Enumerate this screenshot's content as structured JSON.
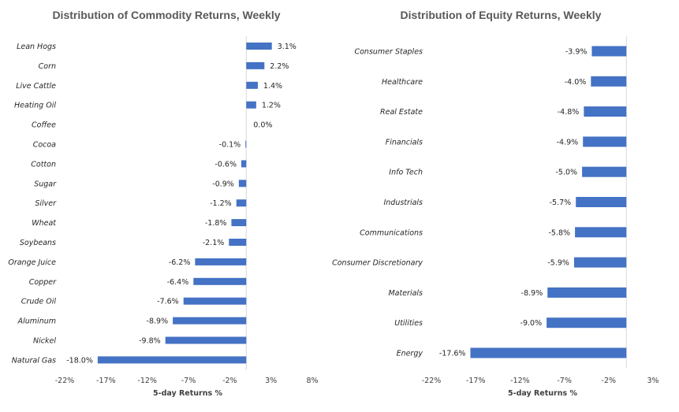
{
  "chart_data": [
    {
      "type": "bar",
      "orientation": "horizontal",
      "title": "Distribution of Commodity Returns, Weekly",
      "xlabel": "5-day Returns %",
      "ylabel": "",
      "xlim": [
        -22,
        8
      ],
      "xticks": [
        -22,
        -17,
        -12,
        -7,
        -2,
        3,
        8
      ],
      "xtick_labels": [
        "-22%",
        "-17%",
        "-12%",
        "-7%",
        "-2%",
        "3%",
        "8%"
      ],
      "grid": false,
      "bar_color": "#4472C4",
      "categories": [
        "Lean Hogs",
        "Corn",
        "Live Cattle",
        "Heating Oil",
        "Coffee",
        "Cocoa",
        "Cotton",
        "Sugar",
        "Silver",
        "Wheat",
        "Soybeans",
        "Orange Juice",
        "Copper",
        "Crude Oil",
        "Aluminum",
        "Nickel",
        "Natural Gas"
      ],
      "values": [
        3.1,
        2.2,
        1.4,
        1.2,
        0.0,
        -0.1,
        -0.6,
        -0.9,
        -1.2,
        -1.8,
        -2.1,
        -6.2,
        -6.4,
        -7.6,
        -8.9,
        -9.8,
        -18.0
      ],
      "value_labels": [
        "3.1%",
        "2.2%",
        "1.4%",
        "1.2%",
        "0.0%",
        "-0.1%",
        "-0.6%",
        "-0.9%",
        "-1.2%",
        "-1.8%",
        "-2.1%",
        "-6.2%",
        "-6.4%",
        "-7.6%",
        "-8.9%",
        "-9.8%",
        "-18.0%"
      ]
    },
    {
      "type": "bar",
      "orientation": "horizontal",
      "title": "Distribution of Equity Returns, Weekly",
      "xlabel": "5-day Returns %",
      "ylabel": "",
      "xlim": [
        -22,
        3
      ],
      "xticks": [
        -22,
        -17,
        -12,
        -7,
        -2,
        3
      ],
      "xtick_labels": [
        "-22%",
        "-17%",
        "-12%",
        "-7%",
        "-2%",
        "3%"
      ],
      "grid": false,
      "bar_color": "#4472C4",
      "categories": [
        "Consumer Staples",
        "Healthcare",
        "Real Estate",
        "Financials",
        "Info Tech",
        "Industrials",
        "Communications",
        "Consumer Discretionary",
        "Materials",
        "Utilities",
        "Energy"
      ],
      "values": [
        -3.9,
        -4.0,
        -4.8,
        -4.9,
        -5.0,
        -5.7,
        -5.8,
        -5.9,
        -8.9,
        -9.0,
        -17.6
      ],
      "value_labels": [
        "-3.9%",
        "-4.0%",
        "-4.8%",
        "-4.9%",
        "-5.0%",
        "-5.7%",
        "-5.8%",
        "-5.9%",
        "-8.9%",
        "-9.0%",
        "-17.6%"
      ]
    }
  ]
}
